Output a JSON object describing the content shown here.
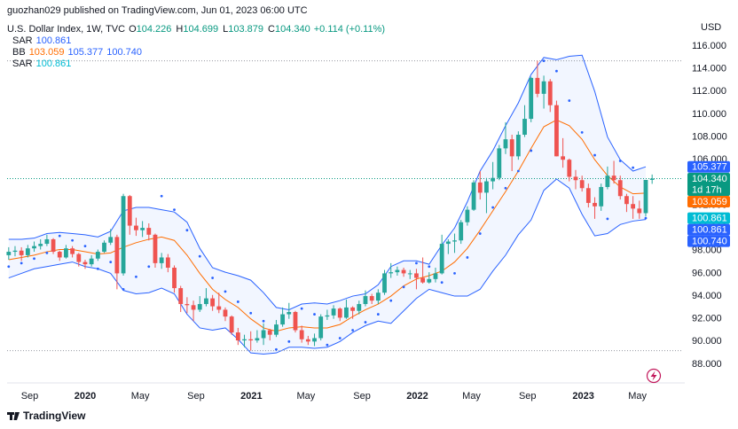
{
  "chart_data": {
    "type": "candlestick",
    "publisher_line": "guozhan029 published on TradingView.com, Jun 01, 2023 06:00 UTC",
    "symbol": "U.S. Dollar Index, 1W, TVC",
    "ohlc_info": [
      {
        "key": "O",
        "text": "104.226"
      },
      {
        "key": "H",
        "text": "104.699"
      },
      {
        "key": "L",
        "text": "103.879"
      },
      {
        "key": "C",
        "text": "104.340"
      }
    ],
    "change": "+0.114 (+0.11%)",
    "legend": [
      {
        "name": "SAR",
        "values": [
          "100.861"
        ],
        "colors": [
          "#2962ff"
        ]
      },
      {
        "name": "BB",
        "values": [
          "103.059",
          "105.377",
          "100.740"
        ],
        "colors": [
          "#ff6d00",
          "#2962ff",
          "#2962ff"
        ]
      },
      {
        "name": "SAR",
        "values": [
          "100.861"
        ],
        "colors": [
          "#00bcd4"
        ]
      }
    ],
    "y_axis_label": "USD",
    "brand": "TradingView",
    "up_color": "#26a69a",
    "down_color": "#ef5350",
    "band_color": "#2962ff",
    "basis_color": "#ff6d00",
    "sar_color": "#2962ff",
    "grid": false,
    "xlim": [
      -24.5,
      187.7
    ],
    "ylim": [
      86.36,
      118.34
    ],
    "yticks": [
      {
        "value": 88,
        "label": "88.000"
      },
      {
        "value": 90,
        "label": "90.000"
      },
      {
        "value": 92,
        "label": "92.000"
      },
      {
        "value": 94,
        "label": "94.000"
      },
      {
        "value": 96,
        "label": "96.000"
      },
      {
        "value": 98,
        "label": "98.000"
      },
      {
        "value": 100,
        "label": "100.000"
      },
      {
        "value": 102,
        "label": "102.000"
      },
      {
        "value": 104,
        "label": "104.000"
      },
      {
        "value": 106,
        "label": "106.000"
      },
      {
        "value": 108,
        "label": "108.000"
      },
      {
        "value": 110,
        "label": "110.000"
      },
      {
        "value": 112,
        "label": "112.000"
      },
      {
        "value": 114,
        "label": "114.000"
      },
      {
        "value": 116,
        "label": "116.000"
      }
    ],
    "xticks": [
      {
        "value": -17.4,
        "label": "Sep"
      },
      {
        "value": 0,
        "label": "2020"
      },
      {
        "value": 17.3,
        "label": "May"
      },
      {
        "value": 34.8,
        "label": "Sep"
      },
      {
        "value": 52.2,
        "label": "2021"
      },
      {
        "value": 69.3,
        "label": "May"
      },
      {
        "value": 86.9,
        "label": "Sep"
      },
      {
        "value": 104.3,
        "label": "2022"
      },
      {
        "value": 121.3,
        "label": "May"
      },
      {
        "value": 138.9,
        "label": "Sep"
      },
      {
        "value": 156.4,
        "label": "2023"
      },
      {
        "value": 173.4,
        "label": "May"
      }
    ],
    "x": [
      -24,
      -22,
      -20,
      -18,
      -16,
      -14,
      -12,
      -10,
      -8,
      -6,
      -4,
      -2,
      0,
      2,
      4,
      6,
      8,
      10,
      12,
      14,
      16,
      18,
      20,
      22,
      24,
      26,
      28,
      30,
      32,
      34,
      36,
      38,
      40,
      42,
      44,
      46,
      48,
      50,
      52,
      54,
      56,
      58,
      60,
      62,
      64,
      66,
      68,
      70,
      72,
      74,
      76,
      78,
      80,
      82,
      84,
      86,
      88,
      90,
      92,
      94,
      96,
      98,
      100,
      102,
      104,
      106,
      108,
      110,
      112,
      114,
      116,
      118,
      120,
      122,
      124,
      126,
      128,
      130,
      132,
      134,
      136,
      138,
      140,
      142,
      144,
      146,
      148,
      150,
      152,
      154,
      156,
      158,
      160,
      162,
      164,
      166,
      168,
      170,
      172,
      174,
      176,
      178
    ],
    "candles": [
      [
        97.6,
        98.3,
        97.2,
        97.9
      ],
      [
        97.9,
        98.4,
        97.5,
        98.0
      ],
      [
        98.0,
        98.3,
        97.1,
        97.6
      ],
      [
        97.6,
        98.5,
        97.4,
        98.2
      ],
      [
        98.2,
        98.8,
        97.9,
        98.4
      ],
      [
        98.4,
        99.0,
        98.1,
        98.6
      ],
      [
        98.6,
        99.4,
        98.4,
        99.0
      ],
      [
        99.0,
        99.1,
        97.7,
        97.9
      ],
      [
        97.9,
        98.0,
        97.1,
        97.4
      ],
      [
        97.4,
        98.5,
        97.3,
        98.2
      ],
      [
        98.2,
        98.4,
        97.4,
        97.7
      ],
      [
        97.7,
        97.8,
        96.6,
        97.0
      ],
      [
        97.0,
        97.2,
        96.4,
        96.8
      ],
      [
        96.8,
        97.6,
        96.6,
        97.3
      ],
      [
        97.3,
        98.1,
        97.1,
        97.9
      ],
      [
        97.9,
        98.9,
        97.8,
        98.7
      ],
      [
        98.7,
        99.9,
        98.5,
        99.2
      ],
      [
        99.2,
        99.4,
        94.6,
        96.0
      ],
      [
        96.0,
        103.0,
        95.8,
        102.8
      ],
      [
        102.8,
        102.9,
        99.4,
        100.2
      ],
      [
        100.2,
        100.9,
        99.3,
        99.8
      ],
      [
        99.8,
        100.6,
        99.2,
        100.0
      ],
      [
        100.0,
        100.4,
        98.9,
        99.4
      ],
      [
        99.4,
        99.5,
        96.5,
        96.9
      ],
      [
        96.9,
        97.8,
        96.4,
        97.4
      ],
      [
        97.4,
        97.7,
        96.1,
        96.5
      ],
      [
        96.5,
        96.7,
        94.3,
        94.7
      ],
      [
        94.7,
        94.9,
        92.6,
        93.3
      ],
      [
        93.3,
        93.9,
        92.5,
        93.2
      ],
      [
        93.2,
        93.6,
        91.8,
        92.8
      ],
      [
        92.8,
        94.0,
        92.6,
        93.3
      ],
      [
        93.3,
        94.7,
        93.1,
        93.8
      ],
      [
        93.8,
        94.1,
        92.7,
        93.1
      ],
      [
        93.1,
        94.3,
        92.5,
        92.8
      ],
      [
        92.8,
        93.0,
        91.8,
        92.2
      ],
      [
        92.2,
        92.3,
        90.6,
        90.8
      ],
      [
        90.8,
        91.2,
        89.7,
        90.1
      ],
      [
        90.1,
        90.6,
        89.5,
        90.2
      ],
      [
        90.2,
        90.9,
        89.2,
        90.1
      ],
      [
        90.1,
        91.0,
        89.9,
        90.3
      ],
      [
        90.3,
        91.6,
        89.7,
        91.0
      ],
      [
        91.0,
        91.1,
        90.1,
        90.6
      ],
      [
        90.6,
        91.9,
        90.4,
        91.5
      ],
      [
        91.5,
        93.0,
        91.3,
        92.4
      ],
      [
        92.4,
        93.4,
        92.0,
        92.6
      ],
      [
        92.6,
        92.7,
        90.8,
        91.0
      ],
      [
        91.0,
        91.4,
        89.9,
        90.2
      ],
      [
        90.2,
        90.5,
        89.7,
        90.0
      ],
      [
        90.0,
        90.7,
        89.6,
        90.3
      ],
      [
        90.3,
        92.4,
        90.1,
        92.2
      ],
      [
        92.2,
        92.8,
        91.9,
        92.3
      ],
      [
        92.3,
        93.2,
        92.0,
        92.9
      ],
      [
        92.9,
        93.0,
        91.8,
        92.1
      ],
      [
        92.1,
        93.7,
        92.0,
        93.0
      ],
      [
        93.0,
        93.1,
        92.0,
        92.7
      ],
      [
        92.7,
        93.6,
        92.4,
        93.3
      ],
      [
        93.3,
        94.5,
        93.1,
        94.0
      ],
      [
        94.0,
        94.2,
        93.3,
        93.6
      ],
      [
        93.6,
        94.6,
        93.3,
        94.3
      ],
      [
        94.3,
        96.3,
        94.1,
        96.0
      ],
      [
        96.0,
        96.9,
        95.6,
        96.1
      ],
      [
        96.1,
        96.6,
        95.8,
        96.3
      ],
      [
        96.3,
        96.5,
        95.7,
        96.0
      ],
      [
        96.0,
        96.3,
        95.5,
        96.0
      ],
      [
        96.0,
        96.4,
        94.6,
        95.6
      ],
      [
        95.6,
        97.4,
        95.1,
        95.2
      ],
      [
        95.2,
        96.1,
        95.1,
        95.5
      ],
      [
        95.5,
        96.5,
        95.2,
        96.0
      ],
      [
        96.0,
        99.4,
        95.9,
        98.6
      ],
      [
        98.6,
        99.0,
        97.7,
        98.8
      ],
      [
        98.8,
        99.5,
        97.8,
        98.9
      ],
      [
        98.9,
        100.7,
        98.6,
        100.5
      ],
      [
        100.5,
        101.9,
        100.2,
        101.6
      ],
      [
        101.6,
        104.2,
        101.5,
        104.0
      ],
      [
        104.0,
        105.0,
        102.5,
        103.1
      ],
      [
        103.1,
        104.4,
        101.3,
        104.1
      ],
      [
        104.1,
        105.8,
        103.4,
        104.4
      ],
      [
        104.4,
        107.3,
        104.2,
        107.0
      ],
      [
        107.0,
        109.3,
        106.5,
        107.8
      ],
      [
        107.8,
        108.2,
        105.0,
        106.3
      ],
      [
        106.3,
        108.5,
        106.0,
        108.2
      ],
      [
        108.2,
        110.8,
        108.0,
        109.6
      ],
      [
        109.6,
        113.3,
        109.3,
        113.2
      ],
      [
        113.2,
        114.7,
        111.5,
        111.8
      ],
      [
        111.8,
        113.4,
        110.5,
        112.9
      ],
      [
        112.9,
        113.1,
        110.2,
        110.8
      ],
      [
        110.8,
        111.2,
        106.3,
        106.3
      ],
      [
        106.3,
        107.9,
        105.3,
        106.0
      ],
      [
        106.0,
        106.1,
        104.1,
        104.5
      ],
      [
        104.5,
        105.1,
        103.4,
        104.2
      ],
      [
        104.2,
        104.6,
        103.2,
        103.5
      ],
      [
        103.5,
        103.9,
        101.8,
        102.2
      ],
      [
        102.2,
        102.7,
        100.8,
        101.9
      ],
      [
        101.9,
        103.9,
        101.5,
        103.6
      ],
      [
        103.6,
        105.4,
        103.4,
        104.6
      ],
      [
        104.6,
        105.9,
        103.9,
        104.2
      ],
      [
        104.2,
        104.6,
        102.5,
        102.8
      ],
      [
        102.8,
        103.0,
        101.4,
        102.1
      ],
      [
        102.1,
        102.8,
        100.8,
        101.7
      ],
      [
        101.7,
        102.4,
        100.8,
        101.3
      ],
      [
        101.3,
        104.2,
        101.0,
        104.226
      ],
      [
        104.226,
        104.699,
        103.879,
        104.34
      ]
    ],
    "indicator_x": [
      -24,
      -20,
      -16,
      -12,
      -8,
      -4,
      0,
      4,
      8,
      12,
      16,
      20,
      24,
      28,
      32,
      36,
      40,
      44,
      48,
      52,
      56,
      60,
      64,
      68,
      72,
      76,
      80,
      84,
      88,
      92,
      96,
      100,
      104,
      108,
      112,
      116,
      120,
      124,
      128,
      132,
      136,
      140,
      144,
      148,
      152,
      156,
      160,
      164,
      168,
      172,
      176
    ],
    "bb_upper": [
      99.0,
      99.0,
      99.1,
      99.5,
      99.6,
      99.5,
      99.4,
      99.2,
      99.7,
      101.5,
      101.8,
      101.8,
      101.6,
      101.4,
      100.5,
      98.2,
      96.5,
      96.1,
      95.8,
      95.4,
      94.3,
      93.0,
      92.8,
      93.3,
      93.4,
      93.3,
      93.6,
      94.0,
      94.2,
      95.0,
      96.6,
      97.1,
      97.1,
      96.8,
      98.5,
      100.0,
      102.3,
      105.0,
      106.8,
      109.0,
      111.0,
      113.5,
      115.0,
      114.8,
      115.1,
      115.2,
      112.0,
      108.0,
      106.0,
      105.0,
      105.377
    ],
    "bb_basis": [
      97.2,
      97.4,
      97.6,
      97.9,
      98.1,
      98.1,
      97.9,
      97.7,
      97.8,
      98.3,
      98.7,
      99.0,
      99.2,
      98.9,
      97.6,
      96.0,
      94.6,
      93.7,
      93.0,
      92.0,
      91.2,
      90.9,
      91.2,
      91.3,
      91.2,
      91.2,
      91.5,
      92.2,
      92.8,
      93.3,
      94.0,
      94.9,
      95.5,
      95.8,
      96.2,
      97.0,
      98.2,
      99.8,
      101.5,
      103.2,
      105.0,
      107.0,
      108.9,
      109.5,
      109.0,
      107.8,
      106.0,
      104.6,
      103.6,
      103.0,
      103.059
    ],
    "bb_lower": [
      95.6,
      96.0,
      96.4,
      96.6,
      96.8,
      97.0,
      96.6,
      96.4,
      96.0,
      94.5,
      94.2,
      94.3,
      94.7,
      94.2,
      92.4,
      91.2,
      91.0,
      91.2,
      90.2,
      89.0,
      88.9,
      89.0,
      89.5,
      89.5,
      89.4,
      89.5,
      90.0,
      90.8,
      91.4,
      91.8,
      91.6,
      92.7,
      93.8,
      94.6,
      94.3,
      94.0,
      94.0,
      94.6,
      96.2,
      97.6,
      99.4,
      100.7,
      103.3,
      104.3,
      103.5,
      101.2,
      99.3,
      99.5,
      100.3,
      100.6,
      100.74
    ],
    "sar": [
      96.6,
      96.9,
      97.3,
      97.8,
      99.3,
      98.9,
      98.4,
      96.4,
      97.0,
      94.6,
      95.7,
      96.6,
      102.8,
      101.6,
      99.8,
      97.5,
      95.6,
      94.4,
      93.5,
      92.5,
      91.8,
      89.3,
      90.0,
      92.9,
      92.4,
      89.7,
      90.3,
      91.0,
      91.7,
      92.4,
      93.6,
      94.8,
      96.9,
      96.6,
      95.2,
      96.0,
      97.4,
      99.5,
      101.8,
      103.5,
      105.0,
      106.8,
      114.7,
      113.8,
      111.2,
      108.4,
      106.4,
      100.8,
      105.9,
      105.3,
      100.861
    ],
    "price_tags": [
      {
        "value": 105.377,
        "label": "105.377",
        "color": "#2962ff"
      },
      {
        "value": 104.34,
        "label": "104.340",
        "color": "#089981",
        "countdown": "1d 17h"
      },
      {
        "value": 103.059,
        "label": "103.059",
        "color": "#ff6d00"
      },
      {
        "value": 100.861,
        "label": "100.861",
        "color": "#00bcd4"
      },
      {
        "value": 100.861,
        "label": "100.861",
        "color": "#2962ff"
      },
      {
        "value": 100.74,
        "label": "100.740",
        "color": "#2962ff"
      }
    ]
  }
}
